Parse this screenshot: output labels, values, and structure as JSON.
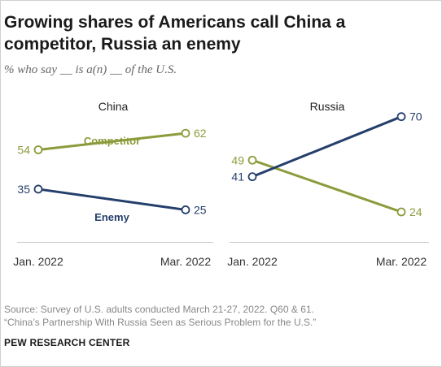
{
  "title": "Growing shares of Americans call China a competitor, Russia an enemy",
  "subtitle": "% who say __ is a(n) __ of the U.S.",
  "colors": {
    "competitor": "#8c9b3a",
    "enemy": "#243f6b",
    "axis": "#cccccc"
  },
  "chart_data": [
    {
      "type": "line",
      "title": "China",
      "x": [
        "Jan. 2022",
        "Mar. 2022"
      ],
      "ylim": [
        0,
        100
      ],
      "series": [
        {
          "name": "Competitor",
          "values": [
            54,
            62
          ]
        },
        {
          "name": "Enemy",
          "values": [
            35,
            25
          ]
        }
      ]
    },
    {
      "type": "line",
      "title": "Russia",
      "x": [
        "Jan. 2022",
        "Mar. 2022"
      ],
      "ylim": [
        0,
        100
      ],
      "series": [
        {
          "name": "",
          "values": [
            49,
            24
          ]
        },
        {
          "name": "",
          "values": [
            41,
            70
          ]
        }
      ]
    }
  ],
  "source": "Source: Survey of U.S. adults conducted March 21-27, 2022. Q60 & 61.",
  "source_line2": "“China’s Partnership With Russia Seen as Serious Problem for the U.S.”",
  "brand": "PEW RESEARCH CENTER"
}
